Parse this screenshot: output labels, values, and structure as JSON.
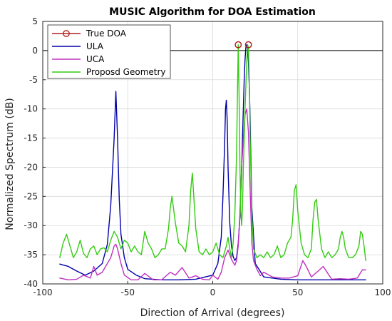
{
  "chart_data": {
    "type": "line",
    "title": "MUSIC Algorithm for DOA Estimation",
    "xlabel": "Direction of Arrival (degrees)",
    "ylabel": "Normalized Spectrum (dB)",
    "xlim": [
      -100,
      100
    ],
    "ylim": [
      -40,
      5
    ],
    "xticks": [
      -100,
      -50,
      0,
      50,
      100
    ],
    "yticks": [
      5,
      0,
      -5,
      -10,
      -15,
      -20,
      -25,
      -30,
      -35,
      -40
    ],
    "grid": true,
    "legend_position": "top-left",
    "reference_line_y": 0,
    "colors": {
      "true_doa": "#b22222",
      "ula": "#0000aa",
      "uca": "#c030c0",
      "proposed": "#33cc11",
      "axis": "#262626",
      "grid": "#d9d9d9"
    },
    "true_doa": {
      "name": "True DOA",
      "x": [
        15,
        21
      ],
      "y": [
        1,
        1
      ]
    },
    "series": [
      {
        "name": "ULA",
        "key": "ula",
        "x": [
          -90,
          -85,
          -80,
          -75,
          -70,
          -65,
          -62,
          -60,
          -58,
          -57,
          -56,
          -55,
          -54,
          -52,
          -50,
          -45,
          -40,
          -30,
          -20,
          -10,
          0,
          3,
          5,
          6,
          7,
          7.5,
          8,
          8.5,
          9,
          10,
          11,
          12,
          13,
          14,
          15,
          16,
          17,
          18,
          18.5,
          19,
          19.5,
          20,
          20.5,
          21,
          21.5,
          22,
          23,
          25,
          30,
          40,
          50,
          60,
          70,
          80,
          90
        ],
        "y": [
          -36.6,
          -37.0,
          -37.8,
          -38.5,
          -37.8,
          -36.5,
          -33.2,
          -26.5,
          -15.0,
          -7.0,
          -15.0,
          -25.5,
          -31.5,
          -35.5,
          -37.5,
          -38.5,
          -39.1,
          -39.3,
          -39.3,
          -39.2,
          -38.5,
          -36.5,
          -32.0,
          -25.0,
          -16.0,
          -10.0,
          -8.5,
          -12.0,
          -20.0,
          -29.5,
          -33.5,
          -35.3,
          -36.0,
          -35.5,
          -33.0,
          -28.5,
          -20.0,
          -10.0,
          -5.0,
          -1.5,
          0.6,
          1.0,
          0.6,
          -2.0,
          -6.0,
          -12.0,
          -27.0,
          -36.5,
          -38.8,
          -39.2,
          -39.3,
          -39.3,
          -39.3,
          -39.3,
          -39.3
        ]
      },
      {
        "name": "UCA",
        "key": "uca",
        "x": [
          -90,
          -85,
          -80,
          -76,
          -72,
          -70,
          -68,
          -65,
          -62,
          -60,
          -58,
          -57,
          -56,
          -54,
          -52,
          -48,
          -44,
          -40,
          -35,
          -30,
          -25,
          -22,
          -18,
          -14,
          -10,
          -6,
          -2,
          0,
          3,
          5,
          7,
          9,
          11,
          13,
          14,
          15,
          16,
          17,
          18,
          19,
          20,
          21,
          22,
          23,
          24,
          26,
          28,
          30,
          35,
          40,
          45,
          50,
          53,
          55,
          58,
          62,
          65,
          70,
          75,
          80,
          85,
          88,
          90
        ],
        "y": [
          -39.0,
          -39.3,
          -39.2,
          -38.5,
          -39.0,
          -37.0,
          -38.5,
          -38.0,
          -36.5,
          -35.5,
          -33.5,
          -33.2,
          -34.0,
          -36.5,
          -38.5,
          -39.3,
          -39.3,
          -38.2,
          -39.3,
          -39.3,
          -38.0,
          -38.5,
          -37.2,
          -39.0,
          -38.6,
          -39.2,
          -39.3,
          -38.5,
          -39.2,
          -38.0,
          -35.5,
          -34.2,
          -35.8,
          -36.8,
          -36.0,
          -33.5,
          -28.0,
          -20.0,
          -15.0,
          -11.0,
          -10.0,
          -14.0,
          -24.0,
          -33.0,
          -36.0,
          -37.5,
          -38.6,
          -38.0,
          -38.8,
          -39.0,
          -39.0,
          -38.6,
          -36.0,
          -37.0,
          -38.8,
          -37.8,
          -37.0,
          -39.2,
          -39.1,
          -39.2,
          -39.0,
          -37.6,
          -37.6
        ]
      },
      {
        "name": "Proposd Geometry",
        "key": "proposed",
        "x": [
          -90,
          -88,
          -86,
          -84,
          -82,
          -80,
          -78,
          -76,
          -74,
          -72,
          -70,
          -68,
          -66,
          -64,
          -62,
          -60,
          -58,
          -56,
          -54,
          -52,
          -50,
          -48,
          -46,
          -44,
          -42,
          -40,
          -38,
          -36,
          -34,
          -32,
          -30,
          -28,
          -26,
          -25,
          -24,
          -22,
          -20,
          -18,
          -16,
          -14,
          -13,
          -12,
          -10,
          -8,
          -6,
          -4,
          -2,
          0,
          2,
          4,
          6,
          8,
          9,
          10,
          11,
          12,
          13,
          14,
          14.5,
          15,
          15.5,
          16,
          16.5,
          17,
          17.5,
          18,
          19,
          20,
          20.5,
          21,
          21.5,
          22,
          23,
          24,
          26,
          28,
          30,
          32,
          34,
          36,
          38,
          40,
          42,
          44,
          46,
          47,
          48,
          49,
          50,
          52,
          54,
          56,
          58,
          59,
          60,
          61,
          62,
          64,
          66,
          68,
          70,
          72,
          74,
          75,
          76,
          77,
          78,
          80,
          82,
          84,
          86,
          87,
          88,
          89,
          90
        ],
        "y": [
          -35.5,
          -33.0,
          -31.5,
          -33.5,
          -35.5,
          -34.5,
          -32.5,
          -34.8,
          -35.5,
          -34.0,
          -33.5,
          -35.0,
          -34.0,
          -33.8,
          -34.5,
          -32.5,
          -31.0,
          -32.0,
          -34.0,
          -32.5,
          -33.0,
          -34.5,
          -33.5,
          -34.5,
          -35.0,
          -31.0,
          -33.0,
          -34.0,
          -35.5,
          -35.0,
          -34.0,
          -34.0,
          -30.5,
          -27.0,
          -25.0,
          -29.5,
          -33.0,
          -33.5,
          -34.5,
          -30.0,
          -24.0,
          -21.0,
          -30.5,
          -34.5,
          -35.0,
          -34.0,
          -35.0,
          -34.5,
          -33.0,
          -35.0,
          -35.5,
          -33.5,
          -32.0,
          -34.0,
          -35.5,
          -33.0,
          -28.0,
          -18.0,
          -8.0,
          1.0,
          -8.0,
          -20.0,
          -27.5,
          -30.0,
          -27.0,
          -20.0,
          -10.0,
          -2.0,
          1.0,
          0.5,
          -5.0,
          -15.0,
          -28.5,
          -34.0,
          -35.5,
          -35.0,
          -35.5,
          -34.5,
          -35.5,
          -35.0,
          -33.5,
          -35.5,
          -35.0,
          -33.0,
          -32.0,
          -29.0,
          -24.0,
          -23.0,
          -27.5,
          -33.0,
          -35.0,
          -35.5,
          -34.0,
          -29.0,
          -26.0,
          -25.5,
          -29.0,
          -34.0,
          -35.5,
          -34.5,
          -35.5,
          -35.0,
          -34.0,
          -32.0,
          -31.0,
          -32.0,
          -34.0,
          -35.5,
          -35.5,
          -35.0,
          -33.5,
          -31.0,
          -31.5,
          -33.5,
          -36.0
        ]
      }
    ]
  }
}
